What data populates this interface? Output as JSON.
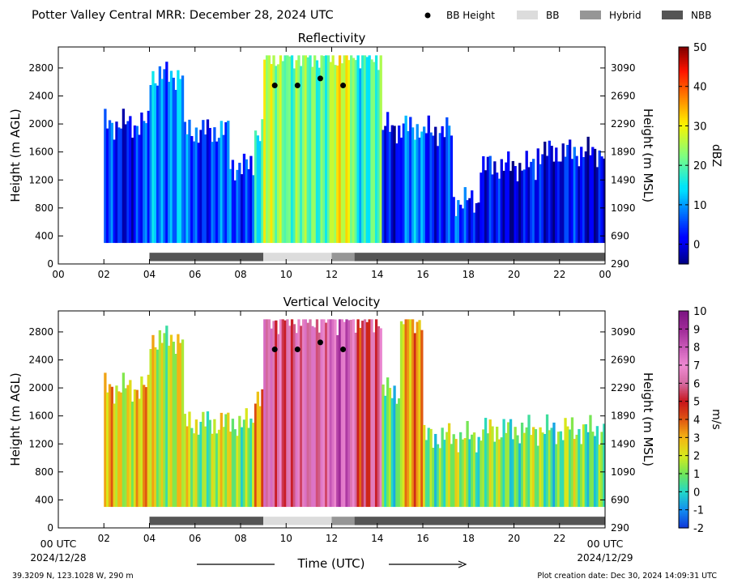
{
  "figure": {
    "title": "Potter Valley Central MRR:  December 28, 2024 UTC",
    "legend": [
      {
        "label": "BB Height",
        "kind": "dot",
        "color": "#000000"
      },
      {
        "label": "BB",
        "kind": "patch",
        "color": "#dcdcdc"
      },
      {
        "label": "Hybrid",
        "kind": "patch",
        "color": "#969696"
      },
      {
        "label": "NBB",
        "kind": "patch",
        "color": "#555555"
      }
    ],
    "xlabel": "Time (UTC)",
    "x_start_label": "00 UTC",
    "x_start_date": "2024/12/28",
    "x_end_label": "00 UTC",
    "x_end_date": "2024/12/29",
    "footer_left": "39.3209 N, 123.1028 W, 290 m",
    "footer_right": "Plot creation date: Dec 30, 2024 14:09:31 UTC"
  },
  "chart_data": [
    {
      "type": "heatmap",
      "title": "Reflectivity",
      "xlabel": "",
      "ylabel": "Height (m AGL)",
      "y2label": "Height (m MSL)",
      "x_ticks": [
        "00",
        "02",
        "04",
        "06",
        "08",
        "10",
        "12",
        "14",
        "16",
        "18",
        "20",
        "22",
        "00"
      ],
      "xlim": [
        0,
        24
      ],
      "ylim": [
        0,
        3100
      ],
      "y_ticks": [
        0,
        400,
        800,
        1200,
        1600,
        2000,
        2400,
        2800
      ],
      "y2_ticks": [
        290,
        690,
        1090,
        1490,
        1890,
        2290,
        2690,
        3090
      ],
      "colorbar": {
        "label": "dBZ",
        "min": -5,
        "max": 50,
        "ticks": [
          0,
          10,
          20,
          30,
          40,
          50
        ]
      },
      "bright_band_height": [
        {
          "time": 9.5,
          "height": 2550
        },
        {
          "time": 10.5,
          "height": 2550
        },
        {
          "time": 11.5,
          "height": 2650
        },
        {
          "time": 12.5,
          "height": 2550
        }
      ],
      "precip_type_bar": [
        {
          "start": 4.0,
          "end": 9.0,
          "type": "NBB"
        },
        {
          "start": 9.0,
          "end": 12.0,
          "type": "BB"
        },
        {
          "start": 12.0,
          "end": 13.0,
          "type": "Hybrid"
        },
        {
          "start": 13.0,
          "end": 24.0,
          "type": "NBB"
        }
      ],
      "field_segments": [
        {
          "start": 2.0,
          "end": 4.0,
          "top": 2000,
          "value": 3
        },
        {
          "start": 4.0,
          "end": 5.5,
          "top": 2700,
          "value": 10
        },
        {
          "start": 5.5,
          "end": 7.5,
          "top": 1900,
          "value": 5
        },
        {
          "start": 7.5,
          "end": 8.6,
          "top": 1400,
          "value": 6
        },
        {
          "start": 8.6,
          "end": 9.0,
          "top": 1900,
          "value": 14
        },
        {
          "start": 9.0,
          "end": 10.0,
          "top": 2980,
          "value": 26
        },
        {
          "start": 10.0,
          "end": 11.0,
          "top": 2980,
          "value": 20
        },
        {
          "start": 11.0,
          "end": 12.0,
          "top": 2980,
          "value": 22
        },
        {
          "start": 12.0,
          "end": 13.0,
          "top": 2980,
          "value": 27
        },
        {
          "start": 13.0,
          "end": 14.2,
          "top": 2980,
          "value": 18
        },
        {
          "start": 14.2,
          "end": 15.0,
          "top": 1950,
          "value": 2
        },
        {
          "start": 15.0,
          "end": 16.0,
          "top": 1950,
          "value": 8
        },
        {
          "start": 16.0,
          "end": 17.3,
          "top": 1900,
          "value": 4
        },
        {
          "start": 17.3,
          "end": 18.5,
          "top": 900,
          "value": 4
        },
        {
          "start": 18.5,
          "end": 21.0,
          "top": 1400,
          "value": 0
        },
        {
          "start": 21.0,
          "end": 24.0,
          "top": 1600,
          "value": 1
        }
      ]
    },
    {
      "type": "heatmap",
      "title": "Vertical Velocity",
      "xlabel": "Time (UTC)",
      "ylabel": "Height (m AGL)",
      "y2label": "Height (m MSL)",
      "x_ticks": [
        "00 UTC",
        "02",
        "04",
        "06",
        "08",
        "10",
        "12",
        "14",
        "16",
        "18",
        "20",
        "22",
        "00 UTC"
      ],
      "xlim": [
        0,
        24
      ],
      "ylim": [
        0,
        3100
      ],
      "y_ticks": [
        0,
        400,
        800,
        1200,
        1600,
        2000,
        2400,
        2800
      ],
      "y2_ticks": [
        290,
        690,
        1090,
        1490,
        1890,
        2290,
        2690,
        3090
      ],
      "colorbar": {
        "label": "m/s",
        "min": -2,
        "max": 10,
        "ticks": [
          -2,
          -1,
          0,
          1,
          2,
          3,
          4,
          5,
          6,
          7,
          8,
          9,
          10
        ]
      },
      "bright_band_height": [
        {
          "time": 9.5,
          "height": 2550
        },
        {
          "time": 10.5,
          "height": 2550
        },
        {
          "time": 11.5,
          "height": 2650
        },
        {
          "time": 12.5,
          "height": 2550
        }
      ],
      "precip_type_bar": [
        {
          "start": 4.0,
          "end": 9.0,
          "type": "NBB"
        },
        {
          "start": 9.0,
          "end": 12.0,
          "type": "BB"
        },
        {
          "start": 12.0,
          "end": 13.0,
          "type": "Hybrid"
        },
        {
          "start": 13.0,
          "end": 24.0,
          "type": "NBB"
        }
      ],
      "field_segments": [
        {
          "start": 2.0,
          "end": 4.0,
          "top": 2000,
          "value": 2.5
        },
        {
          "start": 4.0,
          "end": 5.5,
          "top": 2700,
          "value": 2
        },
        {
          "start": 5.5,
          "end": 8.6,
          "top": 1500,
          "value": 1.5
        },
        {
          "start": 8.6,
          "end": 9.0,
          "top": 1900,
          "value": 3
        },
        {
          "start": 9.0,
          "end": 10.0,
          "top": 2980,
          "value": 6.5
        },
        {
          "start": 10.0,
          "end": 11.0,
          "top": 2980,
          "value": 6
        },
        {
          "start": 11.0,
          "end": 12.0,
          "top": 2980,
          "value": 7
        },
        {
          "start": 12.0,
          "end": 13.0,
          "top": 2980,
          "value": 7.5
        },
        {
          "start": 13.0,
          "end": 14.2,
          "top": 2980,
          "value": 5.5
        },
        {
          "start": 14.2,
          "end": 15.0,
          "top": 1950,
          "value": 0.8
        },
        {
          "start": 15.0,
          "end": 16.0,
          "top": 2980,
          "value": 3
        },
        {
          "start": 16.0,
          "end": 18.5,
          "top": 1300,
          "value": 1.2
        },
        {
          "start": 18.5,
          "end": 24.0,
          "top": 1400,
          "value": 1
        }
      ]
    }
  ]
}
